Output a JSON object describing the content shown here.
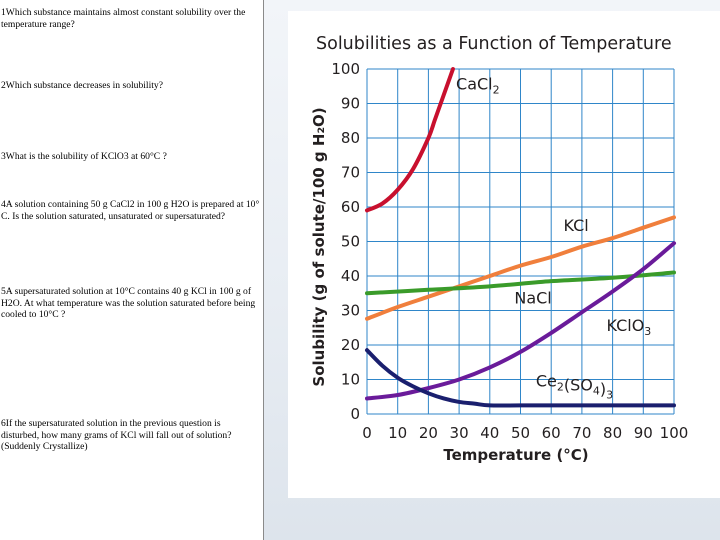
{
  "questions": [
    "1Which substance maintains almost constant solubility over the temperature range?",
    "2Which substance decreases in solubility?",
    "3What is the solubility of KClO3 at 60°C ?",
    "4A solution containing 50 g CaCl2 in 100 g H2O is prepared at 10° C. Is the solution saturated, unsaturated or supersaturated?",
    "5A supersaturated solution at 10°C contains 40 g KCl in 100 g of H2O. At what temperature was the solution saturated before being cooled to 10°C ?",
    "6If the supersaturated solution in the previous question is disturbed, how many grams of KCl will fall out of solution? (Suddenly Crystallize)"
  ],
  "chart_data": {
    "type": "line",
    "title": "Solubilities as a Function of Temperature",
    "xlabel": "Temperature (°C)",
    "ylabel": "Solubility (g of solute/100 g H₂O)",
    "xlim": [
      0,
      100
    ],
    "ylim": [
      0,
      100
    ],
    "xticks": [
      0,
      10,
      20,
      30,
      40,
      50,
      60,
      70,
      80,
      90,
      100
    ],
    "yticks": [
      0,
      10,
      20,
      30,
      40,
      50,
      60,
      70,
      80,
      90,
      100
    ],
    "grid": true,
    "series": [
      {
        "name": "CaCl2",
        "color": "#c8102e",
        "x": [
          0,
          5,
          10,
          15,
          20,
          22,
          24,
          26,
          28
        ],
        "y": [
          59,
          61,
          65,
          71,
          80,
          85,
          90,
          95,
          100
        ]
      },
      {
        "name": "KCl",
        "color": "#f07f3c",
        "x": [
          0,
          10,
          20,
          30,
          40,
          50,
          60,
          70,
          80,
          90,
          100
        ],
        "y": [
          27.6,
          31.0,
          34.0,
          37.0,
          40.0,
          43.0,
          45.5,
          48.5,
          51.0,
          54.0,
          57.0
        ]
      },
      {
        "name": "NaCl",
        "color": "#3a9b2a",
        "x": [
          0,
          20,
          40,
          60,
          80,
          100
        ],
        "y": [
          35.0,
          36.0,
          37.0,
          38.5,
          39.5,
          41.0
        ]
      },
      {
        "name": "KClO3",
        "color": "#6a1b9a",
        "x": [
          0,
          10,
          20,
          30,
          40,
          50,
          60,
          70,
          80,
          90,
          100
        ],
        "y": [
          4.5,
          5.5,
          7.5,
          10.0,
          13.5,
          18.0,
          23.5,
          29.5,
          35.5,
          42.0,
          49.5
        ]
      },
      {
        "name": "Ce2(SO4)3",
        "color": "#1a1f6e",
        "x": [
          0,
          5,
          10,
          15,
          20,
          25,
          30,
          35,
          40,
          50,
          60,
          70,
          80,
          90,
          100
        ],
        "y": [
          18.5,
          14.0,
          10.5,
          8.0,
          6.0,
          4.5,
          3.5,
          3.0,
          2.5,
          2.5,
          2.5,
          2.5,
          2.5,
          2.5,
          2.5
        ]
      }
    ],
    "labels": [
      {
        "text": "CaCl",
        "sub": "2",
        "x": 29,
        "y": 94
      },
      {
        "text": "KCl",
        "sub": "",
        "x": 64,
        "y": 53
      },
      {
        "text": "NaCl",
        "sub": "",
        "x": 48,
        "y": 32
      },
      {
        "text": "KClO",
        "sub": "3",
        "x": 78,
        "y": 24
      },
      {
        "text": "Ce",
        "sub": "2",
        "mid": "(SO",
        "sub2": "4",
        "end": ")",
        "sub3": "3",
        "x": 55,
        "y": 8
      }
    ]
  }
}
